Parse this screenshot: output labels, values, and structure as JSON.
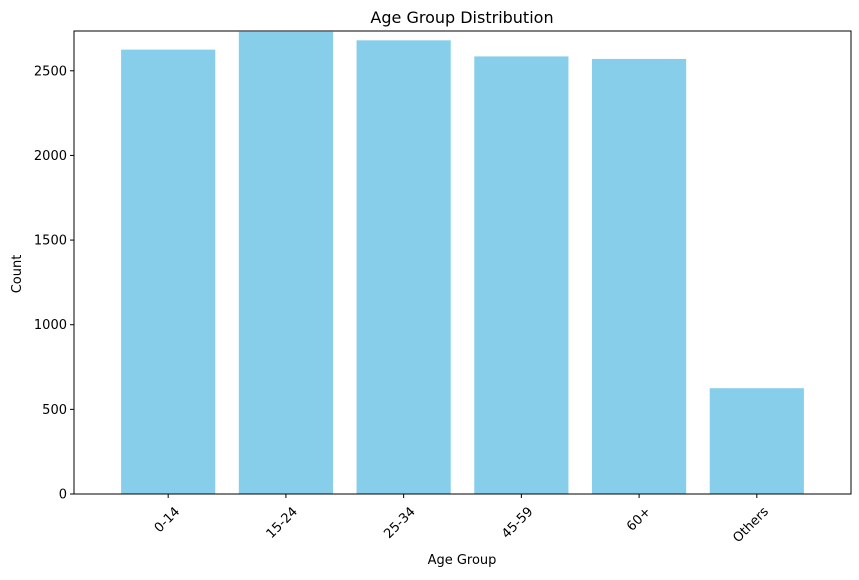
{
  "chart_data": {
    "type": "bar",
    "title": "Age Group Distribution",
    "xlabel": "Age Group",
    "ylabel": "Count",
    "categories": [
      "0-14",
      "15-24",
      "25-34",
      "45-59",
      "60+",
      "Others"
    ],
    "values": [
      2625,
      2730,
      2680,
      2585,
      2570,
      625
    ],
    "ylim": [
      0,
      2735
    ],
    "yticks": [
      0,
      500,
      1000,
      1500,
      2000,
      2500
    ],
    "bar_color": "#87CEEB",
    "grid": false,
    "legend": "none"
  }
}
